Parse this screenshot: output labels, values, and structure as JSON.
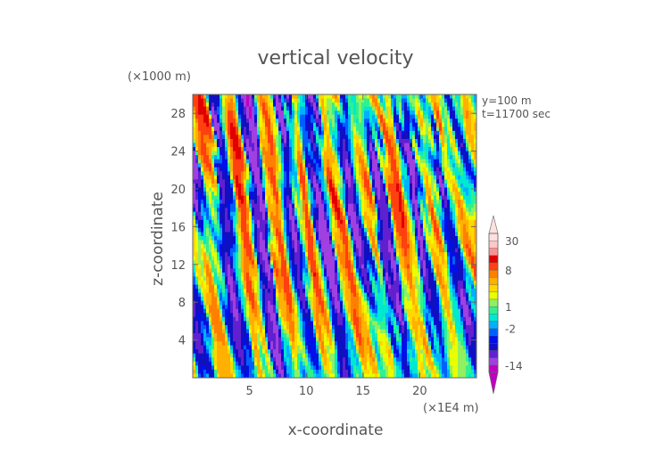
{
  "chart_data": {
    "type": "heatmap",
    "title": "vertical velocity",
    "xlabel": "x-coordinate",
    "ylabel": "z-coordinate",
    "x_unit": "(×1E4 m)",
    "y_unit": "(×1000 m)",
    "annotations": [
      "y=100 m",
      "t=11700 sec"
    ],
    "xlim": [
      0,
      25
    ],
    "ylim": [
      0,
      30
    ],
    "x_ticks": [
      5,
      10,
      15,
      20
    ],
    "y_ticks": [
      4,
      8,
      12,
      16,
      20,
      24,
      28
    ],
    "colorbar": {
      "labels": [
        "30",
        "8",
        "1",
        "-2",
        "-14"
      ],
      "label_values": [
        30,
        8,
        1,
        -2,
        -14
      ],
      "levels": [
        -20,
        -14,
        -8,
        -6,
        -4,
        -3,
        -2,
        -1,
        0,
        1,
        2,
        3,
        4,
        6,
        8,
        12,
        16,
        20,
        30,
        40
      ],
      "colors": [
        "#c000c0",
        "#a040e0",
        "#6020d0",
        "#1010c0",
        "#0010e8",
        "#0060ff",
        "#00b0ff",
        "#00e8d0",
        "#30f090",
        "#90f060",
        "#e8ff00",
        "#ffd800",
        "#ffb000",
        "#ff8000",
        "#ff4010",
        "#e00000",
        "#ff9090",
        "#ffc8c8",
        "#ffe0e0"
      ],
      "extend": "both"
    }
  }
}
